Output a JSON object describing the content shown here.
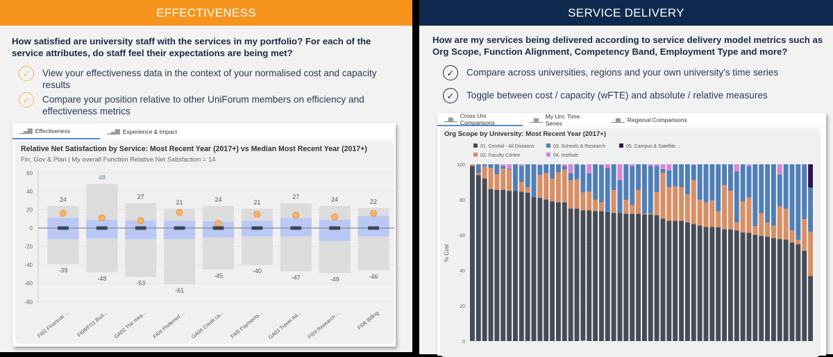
{
  "effectiveness": {
    "header": "EFFECTIVENESS",
    "question": "How satisfied are university staff with the services in my portfolio? For each of the service attributes, do staff feel their expectations are being met?",
    "bullets": [
      "View your effectiveness data in the context of your normalised cost and capacity results",
      "Compare your position relative to other UniForum members on efficiency and effectiveness metrics"
    ],
    "check_icon": "check-circle-icon",
    "accent": "#f7941d",
    "tabs": [
      {
        "label": "Effectiveness",
        "active": true
      },
      {
        "label": "Experience & Impact",
        "active": false
      }
    ],
    "chart_title": "Relative Net Satisfaction by Service: Most Recent Year (2017+) vs Median Most Recent Year (2017+)",
    "chart_subtitle": "Fin, Gov & Plan | My overall Function Relative Net Satisfaction = 14"
  },
  "service_delivery": {
    "header": "SERVICE DELIVERY",
    "question": "How are my services being delivered according to service delivery model metrics such as Org Scope, Function Alignment, Competency Band, Employment Type and more?",
    "bullets": [
      "Compare across universities, regions and your own university's time series",
      "Toggle between cost / capacity (wFTE) and absolute / relative measures"
    ],
    "check_icon": "check-circle-icon",
    "accent": "#0d2a4e",
    "tabs": [
      {
        "label": "Cross Uni Comparisons",
        "active": true
      },
      {
        "label": "My Uni: Time Series",
        "active": false
      },
      {
        "label": "Regional Comparisons",
        "active": false
      }
    ],
    "chart_title": "Org Scope by University: Most Recent Year (2017+)"
  },
  "chart_data": [
    {
      "type": "bar",
      "title": "Relative Net Satisfaction by Service: Most Recent Year (2017+) vs Median Most Recent Year (2017+)",
      "categories": [
        "FI02 Financial ...",
        "FI08/FI11 Bud...",
        "GA02 The mea...",
        "FI04 Preferred ...",
        "GA04 Credit ca...",
        "FI05 Payments...",
        "GA03 Travel Ad...",
        "FI03 Research ...",
        "FI06 Billing"
      ],
      "max": [
        24,
        48,
        27,
        21,
        24,
        21,
        27,
        24,
        22
      ],
      "min": [
        -39,
        -48,
        -53,
        -61,
        -45,
        -40,
        -47,
        -49,
        -46
      ],
      "upper_quartile": [
        11,
        9,
        8,
        8,
        7,
        8,
        11,
        9,
        13
      ],
      "lower_quartile": [
        -12,
        -11,
        -12,
        -12,
        -10,
        -9,
        -9,
        -14,
        -9
      ],
      "median": [
        0,
        0,
        0,
        0,
        0,
        0,
        0,
        0,
        0
      ],
      "my_value": [
        16,
        11,
        8,
        17,
        5,
        15,
        14,
        12,
        16
      ],
      "ylim": [
        -80,
        60
      ],
      "yticks": [
        60,
        40,
        20,
        0,
        -20,
        -40,
        -60,
        -80
      ],
      "grid": true,
      "colors": {
        "range": "#dcdcdc",
        "iqr": "#b9c8f5",
        "median": "#3d4556",
        "my_value": "#f6b26b"
      }
    },
    {
      "type": "bar",
      "stacked": true,
      "title": "Org Scope by University: Most Recent Year (2017+)",
      "ylabel": "% Cost",
      "ylim": [
        0,
        100
      ],
      "yticks": [
        100,
        80,
        60,
        40,
        20,
        0
      ],
      "legend_position": "top",
      "series_names": [
        "01. Central - All Divisions",
        "02. Faculty Centre",
        "03. Schools & Research",
        "04. Institute",
        "05. Campus & Satellite ..."
      ],
      "colors": [
        "#454b57",
        "#d98e64",
        "#4f7fb8",
        "#d686d6",
        "#2e1458"
      ],
      "highlight_index": 18,
      "bars": [
        [
          99,
          1,
          0,
          0,
          0
        ],
        [
          94,
          1,
          5,
          0,
          0
        ],
        [
          92,
          7,
          1,
          0,
          0
        ],
        [
          86,
          12,
          2,
          0,
          0
        ],
        [
          85.5,
          9,
          5.5,
          0,
          0
        ],
        [
          85.5,
          12,
          1.5,
          1,
          0
        ],
        [
          85,
          12,
          0.5,
          2.5,
          0
        ],
        [
          85,
          0,
          15,
          0,
          0
        ],
        [
          84.5,
          5.5,
          9,
          1,
          0
        ],
        [
          84,
          3,
          13,
          0,
          0
        ],
        [
          81.5,
          0,
          18.5,
          0,
          0
        ],
        [
          81,
          13,
          5.5,
          0.5,
          0
        ],
        [
          80,
          15,
          5,
          0,
          0
        ],
        [
          79,
          13,
          8,
          0,
          0
        ],
        [
          78.5,
          17,
          4.5,
          0,
          0
        ],
        [
          78.5,
          18.5,
          2,
          1,
          0
        ],
        [
          75,
          16,
          4,
          5,
          0
        ],
        [
          75,
          16.5,
          8.5,
          0,
          0
        ],
        [
          74,
          10,
          16,
          0,
          0
        ],
        [
          74,
          10.5,
          10.5,
          5,
          0
        ],
        [
          73.5,
          6.5,
          20,
          0,
          0
        ],
        [
          73.5,
          5,
          21,
          0.5,
          0
        ],
        [
          73,
          0,
          25,
          2,
          0
        ],
        [
          72.5,
          13,
          14.5,
          0,
          0
        ],
        [
          72.5,
          0,
          18.5,
          9,
          0
        ],
        [
          72,
          8,
          20,
          0,
          0
        ],
        [
          72,
          5,
          22,
          1,
          0
        ],
        [
          72,
          13.5,
          14.5,
          0,
          0
        ],
        [
          71.6,
          0.5,
          27.9,
          0,
          0
        ],
        [
          71.6,
          0.5,
          26.9,
          1,
          0
        ],
        [
          71.2,
          13,
          14.8,
          1,
          0
        ],
        [
          69.3,
          26,
          2,
          2.7,
          0
        ],
        [
          68.1,
          19,
          9.4,
          3.5,
          0
        ],
        [
          68.1,
          19.5,
          12.4,
          0,
          0
        ],
        [
          68,
          19,
          13,
          0,
          0
        ],
        [
          67.1,
          16,
          16.9,
          0,
          0
        ],
        [
          66.2,
          25,
          8.5,
          0.3,
          0
        ],
        [
          65.3,
          14.6,
          20.1,
          0,
          0
        ],
        [
          64.5,
          14,
          21.5,
          0,
          0
        ],
        [
          64.5,
          15,
          20.5,
          0,
          0
        ],
        [
          64.4,
          9,
          26.6,
          0,
          0
        ],
        [
          63.2,
          25,
          11.8,
          0,
          0
        ],
        [
          63.1,
          22,
          14.9,
          0,
          0
        ],
        [
          62.6,
          4.6,
          28.8,
          4,
          0
        ],
        [
          61.5,
          17.5,
          21,
          0,
          0
        ],
        [
          61.3,
          20,
          17.7,
          1,
          0
        ],
        [
          60,
          5,
          35,
          0,
          0
        ],
        [
          59.4,
          13,
          27.6,
          0,
          0
        ],
        [
          59.1,
          8,
          32.9,
          0,
          0
        ],
        [
          58.3,
          7,
          34.7,
          0,
          0
        ],
        [
          57.7,
          18.5,
          18,
          5.8,
          0
        ],
        [
          57.4,
          17.5,
          25.1,
          0,
          0
        ],
        [
          55.7,
          7,
          37.3,
          0,
          0
        ],
        [
          54.8,
          2.5,
          42.7,
          0,
          0
        ],
        [
          51,
          18,
          31,
          0,
          0
        ],
        [
          36.8,
          25,
          25,
          0,
          13.2
        ]
      ]
    }
  ]
}
